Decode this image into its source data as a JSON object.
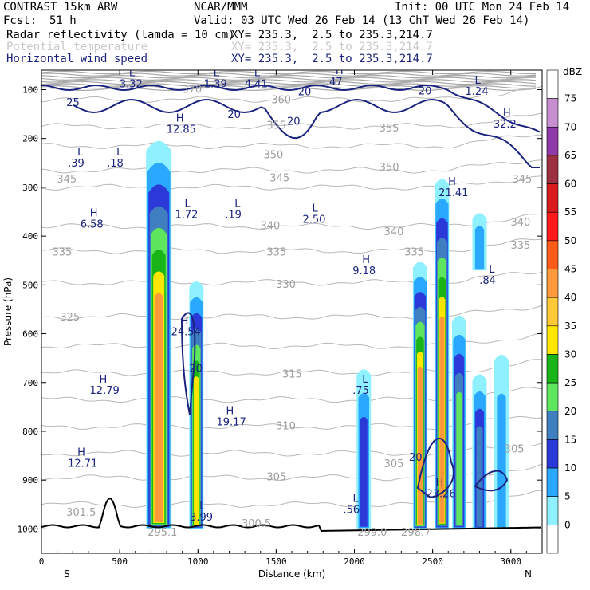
{
  "header": {
    "model": "CONTRAST 15km ARW",
    "org": "NCAR/MMM",
    "init": "Init: 00 UTC Mon 24 Feb 14",
    "fcst_label": "Fcst:",
    "fcst_value": "51 h",
    "valid": "Valid: 03 UTC Wed 26 Feb 14 (13 ChT Wed 26 Feb 14)",
    "fields": [
      {
        "name": "Radar reflectivity (lamda = 10 cm)",
        "xy": "XY= 235.3,  2.5 to 235.3,214.7",
        "color": "#000000"
      },
      {
        "name": "Potential temperature",
        "xy": "XY= 235.3,  2.5 to 235.3,214.7",
        "color": "#b0b0b0"
      },
      {
        "name": "Horizontal wind speed",
        "xy": "XY= 235.3,  2.5 to 235.3,214.7",
        "color": "#1a237e"
      }
    ]
  },
  "chart_data": {
    "type": "heatmap",
    "title": "",
    "xlabel": "Distance (km)",
    "ylabel": "Pressure (hPa)",
    "xlim": [
      0,
      3200
    ],
    "ylim": [
      1050,
      60
    ],
    "x_ticks": [
      "0",
      "500",
      "1000",
      "1500",
      "2000",
      "2500",
      "3000"
    ],
    "x_tick_values": [
      0,
      500,
      1000,
      1500,
      2000,
      2500,
      3000
    ],
    "y_ticks": [
      "100",
      "200",
      "300",
      "400",
      "500",
      "600",
      "700",
      "800",
      "900",
      "1000"
    ],
    "y_tick_values": [
      100,
      200,
      300,
      400,
      500,
      600,
      700,
      800,
      900,
      1000
    ],
    "x_end_labels": {
      "left": "S",
      "right": "N"
    },
    "colorbar": {
      "unit": "dBZ",
      "levels": [
        "75",
        "70",
        "65",
        "60",
        "55",
        "50",
        "45",
        "40",
        "35",
        "30",
        "25",
        "20",
        "15",
        "10",
        "5",
        "0"
      ],
      "colors": [
        "#ffffff",
        "#c78fd0",
        "#8e3aa8",
        "#9c3040",
        "#d81b1b",
        "#ff1a1a",
        "#ff5c1a",
        "#ff9a3c",
        "#ffc837",
        "#ffe600",
        "#18b418",
        "#5ee65e",
        "#3f7fbf",
        "#2b39d8",
        "#2aa8ff",
        "#8ff0ff",
        "#ffffff"
      ]
    },
    "reflectivity_cells": [
      {
        "x": 750,
        "top_hPa": 200,
        "bottom_hPa": 1000,
        "max_dbz": 40
      },
      {
        "x": 990,
        "top_hPa": 490,
        "bottom_hPa": 1000,
        "max_dbz": 35
      },
      {
        "x": 2060,
        "top_hPa": 670,
        "bottom_hPa": 1000,
        "max_dbz": 15
      },
      {
        "x": 2420,
        "top_hPa": 450,
        "bottom_hPa": 1000,
        "max_dbz": 40
      },
      {
        "x": 2560,
        "top_hPa": 280,
        "bottom_hPa": 1000,
        "max_dbz": 40
      },
      {
        "x": 2670,
        "top_hPa": 560,
        "bottom_hPa": 1000,
        "max_dbz": 25
      },
      {
        "x": 2800,
        "top_hPa": 680,
        "bottom_hPa": 1000,
        "max_dbz": 20
      },
      {
        "x": 2940,
        "top_hPa": 640,
        "bottom_hPa": 1000,
        "max_dbz": 10
      },
      {
        "x": 2800,
        "top_hPa": 350,
        "bottom_hPa": 470,
        "max_dbz": 10
      }
    ],
    "theta_contour_labels": [
      {
        "text": "370",
        "x": 960,
        "p": 98
      },
      {
        "text": "360",
        "x": 1530,
        "p": 120
      },
      {
        "text": "355",
        "x": 1500,
        "p": 172
      },
      {
        "text": "355",
        "x": 2220,
        "p": 178
      },
      {
        "text": "350",
        "x": 1480,
        "p": 232
      },
      {
        "text": "350",
        "x": 2220,
        "p": 258
      },
      {
        "text": "345",
        "x": 160,
        "p": 282
      },
      {
        "text": "345",
        "x": 1520,
        "p": 280
      },
      {
        "text": "345",
        "x": 3070,
        "p": 282
      },
      {
        "text": "340",
        "x": 1460,
        "p": 378
      },
      {
        "text": "340",
        "x": 2250,
        "p": 390
      },
      {
        "text": "340",
        "x": 3060,
        "p": 370
      },
      {
        "text": "335",
        "x": 130,
        "p": 432
      },
      {
        "text": "335",
        "x": 1500,
        "p": 432
      },
      {
        "text": "335",
        "x": 2380,
        "p": 432
      },
      {
        "text": "335",
        "x": 3060,
        "p": 418
      },
      {
        "text": "330",
        "x": 1560,
        "p": 498
      },
      {
        "text": "325",
        "x": 180,
        "p": 565
      },
      {
        "text": "315",
        "x": 1600,
        "p": 682
      },
      {
        "text": "310",
        "x": 1560,
        "p": 788
      },
      {
        "text": "305",
        "x": 1500,
        "p": 892
      },
      {
        "text": "305",
        "x": 2250,
        "p": 865
      },
      {
        "text": "305",
        "x": 3020,
        "p": 835
      },
      {
        "text": "301.5",
        "x": 220,
        "p": 965
      },
      {
        "text": "300.5",
        "x": 1340,
        "p": 988
      },
      {
        "text": "295.1",
        "x": 740,
        "p": 1006
      },
      {
        "text": "299.0",
        "x": 2080,
        "p": 1006
      },
      {
        "text": "298.7",
        "x": 2360,
        "p": 1006
      }
    ],
    "wind_contour_labels": [
      {
        "text": "25",
        "x": 200,
        "p": 125
      },
      {
        "text": "20",
        "x": 1230,
        "p": 150
      },
      {
        "text": "20",
        "x": 1610,
        "p": 164
      },
      {
        "text": "20",
        "x": 1680,
        "p": 103
      },
      {
        "text": "20",
        "x": 2450,
        "p": 102
      },
      {
        "text": "20",
        "x": 985,
        "p": 670
      },
      {
        "text": "20",
        "x": 2390,
        "p": 852
      }
    ],
    "extrema_labels": [
      {
        "kind": "L",
        "value": "3.32",
        "x": 580,
        "p": 72
      },
      {
        "kind": "L",
        "value": "1.39",
        "x": 1120,
        "p": 72
      },
      {
        "kind": "L",
        "value": "4.41",
        "x": 1380,
        "p": 72
      },
      {
        "kind": "H",
        "value": ".47",
        "x": 1900,
        "p": 68
      },
      {
        "kind": "L",
        "value": "1.24",
        "x": 2790,
        "p": 88
      },
      {
        "kind": "H",
        "value": "32.2",
        "x": 2970,
        "p": 155
      },
      {
        "kind": "H",
        "value": "12.85",
        "x": 880,
        "p": 165
      },
      {
        "kind": "L",
        "value": ".39",
        "x": 250,
        "p": 235
      },
      {
        "kind": "L",
        "value": ".18",
        "x": 500,
        "p": 235
      },
      {
        "kind": "H",
        "value": "21.41",
        "x": 2620,
        "p": 295
      },
      {
        "kind": "L",
        "value": "1.72",
        "x": 935,
        "p": 340
      },
      {
        "kind": "L",
        "value": ".19",
        "x": 1255,
        "p": 340
      },
      {
        "kind": "L",
        "value": "2.50",
        "x": 1750,
        "p": 350
      },
      {
        "kind": "H",
        "value": "6.58",
        "x": 330,
        "p": 360
      },
      {
        "kind": "H",
        "value": "9.18",
        "x": 2070,
        "p": 455
      },
      {
        "kind": "L",
        "value": ".84",
        "x": 2880,
        "p": 475
      },
      {
        "kind": "H",
        "value": "24.54",
        "x": 910,
        "p": 580
      },
      {
        "kind": "H",
        "value": "12.79",
        "x": 390,
        "p": 700
      },
      {
        "kind": "L",
        "value": ".75",
        "x": 2070,
        "p": 700
      },
      {
        "kind": "H",
        "value": "19.17",
        "x": 1200,
        "p": 765
      },
      {
        "kind": "H",
        "value": "12.71",
        "x": 250,
        "p": 850
      },
      {
        "kind": "H",
        "value": "23.26",
        "x": 2540,
        "p": 912
      },
      {
        "kind": "L",
        "value": ".56",
        "x": 2010,
        "p": 945
      },
      {
        "kind": "L",
        "value": "3.99",
        "x": 1030,
        "p": 960
      }
    ]
  }
}
